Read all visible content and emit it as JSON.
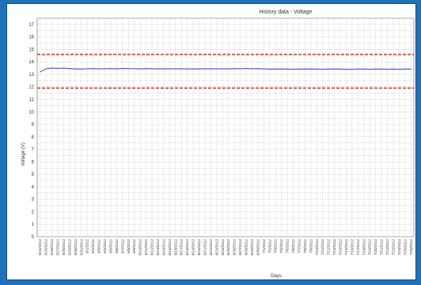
{
  "colors": {
    "frame_border": "#1f72b8",
    "background": "#ffffff",
    "grid": "#c9c9c9",
    "series_line": "#4a58c8",
    "threshold_line": "#e2392b"
  },
  "chart_data": {
    "type": "line",
    "title": "History data - Voltage",
    "xlabel": "Days",
    "ylabel": "Voltage (V)",
    "ylim": [
      0,
      17.5
    ],
    "yticks": [
      0,
      1,
      2,
      3,
      4,
      5,
      6,
      7,
      8,
      9,
      10,
      11,
      12,
      13,
      14,
      15,
      16,
      17
    ],
    "grid": true,
    "x": [
      "5/24/2012",
      "5/25/2012",
      "5/26/2012",
      "5/27/2012",
      "5/28/2012",
      "5/29/2012",
      "5/30/2012",
      "5/31/2012",
      "6/1/2012",
      "6/2/2012",
      "6/3/2012",
      "6/4/2012",
      "6/5/2012",
      "6/6/2012",
      "6/7/2012",
      "6/8/2012",
      "6/9/2012",
      "6/10/2012",
      "6/11/2012",
      "6/12/2012",
      "6/13/2012",
      "6/14/2012",
      "6/15/2012",
      "6/16/2012",
      "6/17/2012",
      "6/18/2012",
      "6/19/2012",
      "6/20/2012",
      "6/21/2012",
      "6/22/2012",
      "6/23/2012",
      "6/24/2012",
      "6/25/2012",
      "6/26/2012",
      "6/27/2012",
      "6/28/2012",
      "6/29/2012",
      "6/30/2012",
      "7/1/2012",
      "7/2/2012",
      "7/3/2012",
      "7/4/2012",
      "7/5/2012",
      "7/6/2012",
      "7/7/2012",
      "7/8/2012",
      "7/9/2012",
      "7/10/2012",
      "7/11/2012",
      "7/12/2012",
      "7/13/2012",
      "7/14/2012",
      "7/15/2012",
      "7/16/2012",
      "7/17/2012",
      "7/18/2012",
      "7/19/2012",
      "7/20/2012",
      "7/21/2012",
      "7/22/2012",
      "7/23/2012",
      "7/24/2012",
      "7/25/2012",
      "7/26/2012"
    ],
    "series": [
      {
        "values": [
          13.2,
          13.45,
          13.5,
          13.48,
          13.5,
          13.46,
          13.44,
          13.42,
          13.45,
          13.46,
          13.44,
          13.45,
          13.46,
          13.44,
          13.48,
          13.46,
          13.45,
          13.44,
          13.46,
          13.45,
          13.44,
          13.44,
          13.45,
          13.44,
          13.45,
          13.44,
          13.43,
          13.44,
          13.45,
          13.44,
          13.45,
          13.44,
          13.44,
          13.46,
          13.45,
          13.47,
          13.45,
          13.46,
          13.44,
          13.42,
          13.42,
          13.43,
          13.42,
          13.41,
          13.42,
          13.42,
          13.43,
          13.42,
          13.41,
          13.42,
          13.43,
          13.42,
          13.4,
          13.41,
          13.42,
          13.42,
          13.41,
          13.42,
          13.42,
          13.41,
          13.42,
          13.41,
          13.42,
          13.42
        ]
      }
    ],
    "thresholds": [
      {
        "value": 14.6
      },
      {
        "value": 11.9
      }
    ]
  }
}
